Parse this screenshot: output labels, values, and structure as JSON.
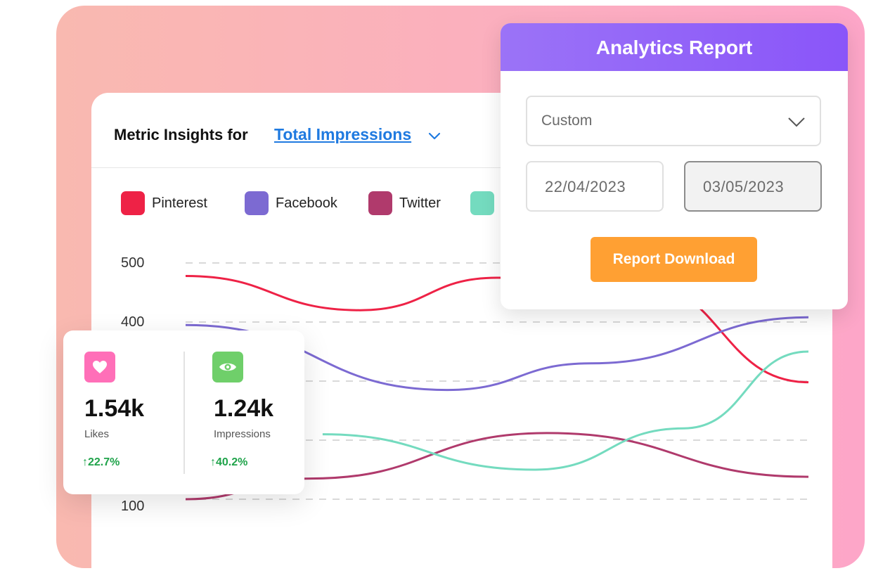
{
  "insights": {
    "title": "Metric Insights for",
    "metric": "Total Impressions",
    "legend": [
      {
        "label": "Pinterest",
        "color": "#ee2246"
      },
      {
        "label": "Facebook",
        "color": "#7c6ad2"
      },
      {
        "label": "Twitter",
        "color": "#b03a6c"
      },
      {
        "label": "",
        "color": "#74dbbf"
      }
    ]
  },
  "chart_data": {
    "type": "line",
    "yticks": [
      "500",
      "400",
      "100"
    ],
    "grid": true,
    "series": [
      {
        "name": "Pinterest",
        "color": "#ee2246",
        "points": [
          [
            0,
            478
          ],
          [
            0.28,
            420
          ],
          [
            0.5,
            475
          ],
          [
            0.72,
            470
          ],
          [
            1,
            298
          ]
        ]
      },
      {
        "name": "Facebook",
        "color": "#7c6ad2",
        "points": [
          [
            0,
            395
          ],
          [
            0.42,
            285
          ],
          [
            0.65,
            330
          ],
          [
            1,
            408
          ]
        ]
      },
      {
        "name": "Twitter",
        "color": "#b03a6c",
        "points": [
          [
            0,
            100
          ],
          [
            0.2,
            135
          ],
          [
            0.58,
            212
          ],
          [
            1,
            138
          ]
        ]
      },
      {
        "name": "",
        "color": "#74dbbf",
        "points": [
          [
            0.22,
            210
          ],
          [
            0.56,
            150
          ],
          [
            0.8,
            220
          ],
          [
            1,
            350
          ]
        ]
      }
    ]
  },
  "stats": {
    "likes": {
      "value": "1.54k",
      "label": "Likes",
      "change": "22.7%",
      "icon": "heart-icon",
      "color": "#ff6fb8"
    },
    "impressions": {
      "value": "1.24k",
      "label": "Impressions",
      "change": "40.2%",
      "icon": "eye-icon",
      "color": "#6fcf6a"
    }
  },
  "report": {
    "title": "Analytics Report",
    "range": "Custom",
    "start_date": "22/04/2023",
    "end_date": "03/05/2023",
    "download_label": "Report Download"
  }
}
